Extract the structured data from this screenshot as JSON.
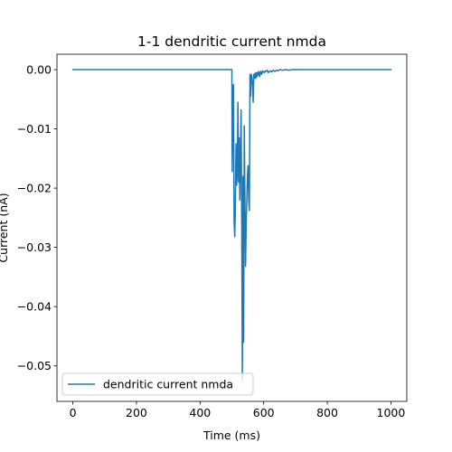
{
  "chart_data": {
    "type": "line",
    "title": "1-1 dendritic current nmda",
    "xlabel": "Time (ms)",
    "ylabel": "Current (nA)",
    "xlim": [
      -50,
      1050
    ],
    "ylim": [
      -0.056,
      0.0026
    ],
    "xticks": [
      0,
      200,
      400,
      600,
      800,
      1000
    ],
    "xtick_labels": [
      "0",
      "200",
      "400",
      "600",
      "800",
      "1000"
    ],
    "yticks": [
      0.0,
      -0.01,
      -0.02,
      -0.03,
      -0.04,
      -0.05
    ],
    "ytick_labels": [
      "0.00",
      "−0.01",
      "−0.02",
      "−0.03",
      "−0.04",
      "−0.05"
    ],
    "grid": false,
    "legend_position": "lower-left",
    "colors": {
      "series": "#1f77b4"
    },
    "series": [
      {
        "name": "dendritic current nmda",
        "x": [
          0,
          100,
          200,
          300,
          400,
          500,
          501,
          503,
          505,
          507,
          509,
          511,
          513,
          515,
          517,
          519,
          521,
          523,
          525,
          527,
          529,
          531,
          533,
          535,
          537,
          539,
          541,
          543,
          545,
          547,
          549,
          551,
          553,
          555,
          557,
          559,
          561,
          563,
          565,
          567,
          569,
          571,
          573,
          575,
          577,
          579,
          581,
          583,
          585,
          587,
          589,
          591,
          593,
          595,
          597,
          599,
          602,
          605,
          608,
          611,
          615,
          620,
          625,
          630,
          635,
          640,
          645,
          650,
          660,
          670,
          680,
          690,
          700,
          750,
          800,
          900,
          1000
        ],
        "y": [
          0.0,
          0.0,
          0.0,
          0.0,
          0.0,
          0.0,
          -0.0172,
          -0.004,
          -0.0025,
          -0.0255,
          -0.0282,
          -0.023,
          -0.0125,
          -0.0195,
          -0.0175,
          -0.0055,
          -0.019,
          -0.0115,
          -0.022,
          -0.015,
          -0.0068,
          -0.0255,
          -0.0525,
          -0.018,
          -0.046,
          -0.0095,
          -0.0215,
          -0.0332,
          -0.026,
          -0.022,
          -0.0178,
          -0.0162,
          -0.022,
          -0.0238,
          -0.0008,
          -0.0045,
          -0.0008,
          -0.0012,
          -0.0025,
          -0.0055,
          -0.0008,
          -0.0014,
          -0.0006,
          -0.0015,
          -0.0005,
          -0.0012,
          -0.0005,
          -0.0009,
          -0.0003,
          -0.0012,
          -0.0006,
          -0.0003,
          -0.0008,
          -0.0005,
          -0.0002,
          -0.0004,
          -0.0005,
          -0.0002,
          -0.0003,
          -0.0001,
          -0.0005,
          -0.0002,
          -0.0004,
          -0.0001,
          -0.0003,
          -0.0001,
          -0.0002,
          0.0,
          -0.0001,
          0.0,
          -0.0001,
          0.0,
          0.0,
          0.0,
          0.0,
          0.0,
          0.0
        ]
      }
    ]
  }
}
